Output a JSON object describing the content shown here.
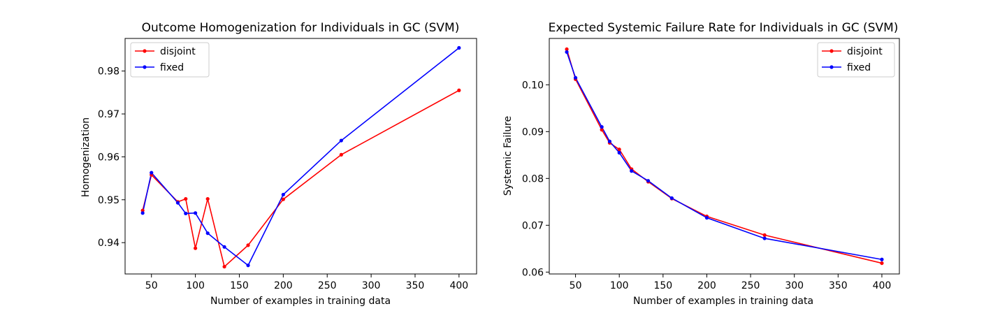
{
  "chart_data": [
    {
      "type": "line",
      "title": "Outcome Homogenization for Individuals in GC (SVM)",
      "xlabel": "Number of examples in training data",
      "ylabel": "Homogenization",
      "xlim": [
        20,
        420
      ],
      "ylim": [
        0.9327,
        0.9876
      ],
      "xticks": [
        50,
        100,
        150,
        200,
        250,
        300,
        350,
        400
      ],
      "yticks": [
        0.94,
        0.95,
        0.96,
        0.97,
        0.98
      ],
      "ytick_labels": [
        "0.94",
        "0.95",
        "0.96",
        "0.97",
        "0.98"
      ],
      "legend": "top-left",
      "series": [
        {
          "name": "disjoint",
          "color": "#ff0000",
          "x": [
            40,
            50,
            80,
            89,
            100,
            114,
            133,
            160,
            200,
            266,
            400
          ],
          "y": [
            0.9475,
            0.9558,
            0.9495,
            0.9502,
            0.9387,
            0.9502,
            0.9344,
            0.9394,
            0.9501,
            0.9605,
            0.9755
          ]
        },
        {
          "name": "fixed",
          "color": "#0000ff",
          "x": [
            40,
            50,
            80,
            89,
            100,
            114,
            133,
            160,
            200,
            266,
            400
          ],
          "y": [
            0.9469,
            0.9563,
            0.9493,
            0.9468,
            0.9469,
            0.9422,
            0.939,
            0.9347,
            0.9512,
            0.9638,
            0.9854
          ]
        }
      ]
    },
    {
      "type": "line",
      "title": "Expected Systemic Failure Rate for Individuals in GC (SVM)",
      "xlabel": "Number of examples in training data",
      "ylabel": "Systemic Failure",
      "xlim": [
        20,
        420
      ],
      "ylim": [
        0.0596,
        0.1099
      ],
      "xticks": [
        50,
        100,
        150,
        200,
        250,
        300,
        350,
        400
      ],
      "yticks": [
        0.06,
        0.07,
        0.08,
        0.09,
        0.1
      ],
      "ytick_labels": [
        "0.06",
        "0.07",
        "0.08",
        "0.09",
        "0.10"
      ],
      "legend": "top-right",
      "series": [
        {
          "name": "disjoint",
          "color": "#ff0000",
          "x": [
            40,
            50,
            80,
            89,
            100,
            114,
            133,
            160,
            200,
            266,
            400
          ],
          "y": [
            0.1076,
            0.1012,
            0.0904,
            0.0876,
            0.0862,
            0.082,
            0.0793,
            0.0757,
            0.0719,
            0.0679,
            0.0619
          ]
        },
        {
          "name": "fixed",
          "color": "#0000ff",
          "x": [
            40,
            50,
            80,
            89,
            100,
            114,
            133,
            160,
            200,
            266,
            400
          ],
          "y": [
            0.107,
            0.1015,
            0.091,
            0.0879,
            0.0855,
            0.0816,
            0.0795,
            0.0758,
            0.0716,
            0.0672,
            0.0627
          ]
        }
      ]
    }
  ]
}
